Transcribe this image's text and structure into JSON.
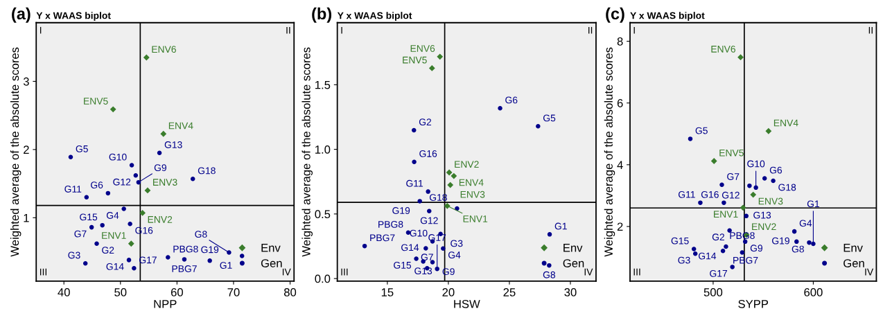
{
  "chart_data": [
    {
      "type": "scatter",
      "title": "Y x WAAS biplot",
      "xlabel": "NPP",
      "ylabel": "Weighted average of the absolute scores",
      "xlim": [
        35.1,
        80.7
      ],
      "ylim": [
        0.07,
        3.86
      ],
      "xticks": [
        40,
        50,
        60,
        70,
        80
      ],
      "yticks": [
        1,
        2,
        3
      ],
      "legend": "bottom right",
      "ref_lines": [
        {
          "axis": "x",
          "value": 53.5,
          "color": "#000000"
        },
        {
          "axis": "y",
          "value": 1.18,
          "color": "#000000"
        }
      ],
      "series": [
        {
          "name": "Env",
          "color": "#3a7d2c",
          "marker": "diamond",
          "x": [
            54.6,
            48.7,
            57.6,
            54.8,
            53.9,
            51.9
          ],
          "values": [
            3.35,
            2.59,
            2.23,
            1.4,
            1.07,
            0.62
          ]
        },
        {
          "name": "Gen",
          "color": "#00008b",
          "marker": "circle",
          "x": [
            56.9,
            41.2,
            52.0,
            52.7,
            53.2,
            62.8,
            47.8,
            44.0,
            50.6,
            46.8,
            51.7,
            44.9,
            45.8,
            51.5,
            43.8,
            52.4,
            58.4,
            61.3,
            65.8,
            69.2,
            71.5
          ],
          "values": [
            1.95,
            1.89,
            1.77,
            1.62,
            1.52,
            1.57,
            1.36,
            1.3,
            1.13,
            0.89,
            0.91,
            0.86,
            0.62,
            0.38,
            0.33,
            0.26,
            0.42,
            0.39,
            0.37,
            0.49,
            0.44
          ]
        }
      ],
      "annotations": [
        "(a)",
        "I",
        "II",
        "III",
        "IV",
        {
          "text": "ENV6",
          "x": 54.6,
          "y": 3.35
        },
        {
          "text": "ENV5",
          "x": 48.7,
          "y": 2.59
        },
        {
          "text": "ENV4",
          "x": 57.6,
          "y": 2.23
        },
        {
          "text": "ENV3",
          "x": 54.8,
          "y": 1.4
        },
        {
          "text": "ENV2",
          "x": 53.9,
          "y": 1.07
        },
        {
          "text": "ENV1",
          "x": 51.9,
          "y": 0.62
        },
        {
          "text": "G13",
          "x": 56.9,
          "y": 1.95
        },
        {
          "text": "G5",
          "x": 41.2,
          "y": 1.89
        },
        {
          "text": "G10",
          "x": 52.0,
          "y": 1.77
        },
        {
          "text": "G12",
          "x": 52.7,
          "y": 1.62
        },
        {
          "text": "G9",
          "x": 53.2,
          "y": 1.52
        },
        {
          "text": "G18",
          "x": 62.8,
          "y": 1.57
        },
        {
          "text": "G6",
          "x": 47.8,
          "y": 1.36
        },
        {
          "text": "G11",
          "x": 44.0,
          "y": 1.3
        },
        {
          "text": "G4",
          "x": 50.6,
          "y": 1.13
        },
        {
          "text": "G15",
          "x": 46.8,
          "y": 0.89
        },
        {
          "text": "G16",
          "x": 51.7,
          "y": 0.91
        },
        {
          "text": "G7",
          "x": 44.9,
          "y": 0.86
        },
        {
          "text": "G2",
          "x": 45.8,
          "y": 0.62
        },
        {
          "text": "G14",
          "x": 51.5,
          "y": 0.38
        },
        {
          "text": "G3",
          "x": 43.8,
          "y": 0.33
        },
        {
          "text": "G17",
          "x": 52.4,
          "y": 0.26
        },
        {
          "text": "PBG8",
          "x": 58.4,
          "y": 0.42
        },
        {
          "text": "PBG7",
          "x": 61.3,
          "y": 0.39
        },
        {
          "text": "G19",
          "x": 65.8,
          "y": 0.37
        },
        {
          "text": "G8",
          "x": 69.2,
          "y": 0.49
        },
        {
          "text": "G1",
          "x": 71.5,
          "y": 0.44
        }
      ]
    },
    {
      "type": "scatter",
      "title": "Y x WAAS biplot",
      "xlabel": "HSW",
      "ylabel": "Weighted average of the absolute scores",
      "xlim": [
        10.9,
        32.1
      ],
      "ylim": [
        -0.02,
        1.98
      ],
      "xticks": [
        15,
        20,
        25,
        30
      ],
      "yticks": [
        {
          "value": 0,
          "label": "0.0"
        },
        {
          "value": 0.5,
          "label": "0.5"
        },
        {
          "value": 1,
          "label": "1.0"
        },
        {
          "value": 1.5,
          "label": "1.5"
        }
      ],
      "legend": "bottom right",
      "ref_lines": [
        {
          "axis": "x",
          "value": 19.7,
          "color": "#000000"
        },
        {
          "axis": "y",
          "value": 0.59,
          "color": "#000000"
        }
      ],
      "series": [
        {
          "name": "Env",
          "color": "#3a7d2c",
          "marker": "diamond",
          "x": [
            19.31,
            18.66,
            20.07,
            20.45,
            20.16,
            19.91
          ],
          "values": [
            1.717,
            1.628,
            0.821,
            0.794,
            0.724,
            0.562
          ]
        },
        {
          "name": "Gen",
          "color": "#00008b",
          "marker": "circle",
          "x": [
            24.24,
            27.35,
            17.18,
            17.2,
            18.34,
            17.66,
            18.43,
            20.71,
            16.71,
            18.7,
            19.36,
            13.14,
            18.15,
            19.57,
            17.37,
            17.94,
            18.7,
            18.26,
            19.08,
            28.3,
            28.26
          ],
          "values": [
            1.318,
            1.179,
            1.148,
            0.903,
            0.673,
            0.599,
            0.522,
            0.542,
            0.356,
            0.288,
            0.345,
            0.252,
            0.234,
            0.233,
            0.154,
            0.132,
            0.127,
            0.08,
            0.075,
            0.342,
            0.102
          ]
        }
      ],
      "annotations": [
        "(b)",
        "I",
        "II",
        "III",
        "IV",
        {
          "text": "ENV6",
          "x": 19.31,
          "y": 1.717
        },
        {
          "text": "ENV5",
          "x": 18.66,
          "y": 1.628
        },
        {
          "text": "ENV2",
          "x": 20.07,
          "y": 0.821
        },
        {
          "text": "ENV4",
          "x": 20.45,
          "y": 0.794
        },
        {
          "text": "ENV3",
          "x": 20.16,
          "y": 0.724
        },
        {
          "text": "ENV1",
          "x": 19.91,
          "y": 0.562
        },
        {
          "text": "G6",
          "x": 24.24,
          "y": 1.318
        },
        {
          "text": "G5",
          "x": 27.35,
          "y": 1.179
        },
        {
          "text": "G2",
          "x": 17.18,
          "y": 1.148
        },
        {
          "text": "G16",
          "x": 17.2,
          "y": 0.903
        },
        {
          "text": "G11",
          "x": 18.34,
          "y": 0.673
        },
        {
          "text": "G19",
          "x": 17.66,
          "y": 0.599
        },
        {
          "text": "G12",
          "x": 18.43,
          "y": 0.522
        },
        {
          "text": "G18",
          "x": 20.71,
          "y": 0.542
        },
        {
          "text": "PBG8",
          "x": 16.71,
          "y": 0.356
        },
        {
          "text": "G10",
          "x": 18.7,
          "y": 0.288
        },
        {
          "text": "G3",
          "x": 19.36,
          "y": 0.345
        },
        {
          "text": "PBG7",
          "x": 13.14,
          "y": 0.252
        },
        {
          "text": "G14",
          "x": 18.15,
          "y": 0.234
        },
        {
          "text": "G4",
          "x": 19.57,
          "y": 0.233
        },
        {
          "text": "G15",
          "x": 17.37,
          "y": 0.154
        },
        {
          "text": "G13",
          "x": 17.94,
          "y": 0.132
        },
        {
          "text": "G9",
          "x": 18.7,
          "y": 0.127
        },
        {
          "text": "G7",
          "x": 18.26,
          "y": 0.08
        },
        {
          "text": "G17",
          "x": 19.08,
          "y": 0.075
        },
        {
          "text": "G1",
          "x": 28.3,
          "y": 0.342
        },
        {
          "text": "G8",
          "x": 28.26,
          "y": 0.102
        }
      ]
    },
    {
      "type": "scatter",
      "title": "Y x WAAS biplot",
      "xlabel": "SYPP",
      "ylabel": "Weighted average of the absolute scores",
      "xlim": [
        417,
        663
      ],
      "ylim": [
        0.23,
        8.6
      ],
      "xticks": [
        500,
        600
      ],
      "yticks": [
        2,
        4,
        6,
        8
      ],
      "legend": "bottom right",
      "ref_lines": [
        {
          "axis": "x",
          "value": 531.1,
          "color": "#000000"
        },
        {
          "axis": "y",
          "value": 2.6,
          "color": "#000000"
        }
      ],
      "series": [
        {
          "name": "Env",
          "color": "#3a7d2c",
          "marker": "diamond",
          "x": [
            527.4,
            555.3,
            500.9,
            540.0,
            529.9,
            533.3
          ],
          "values": [
            7.48,
            5.09,
            4.12,
            3.03,
            2.61,
            1.73
          ]
        },
        {
          "name": "Gen",
          "color": "#00008b",
          "marker": "circle",
          "x": [
            477.2,
            508.7,
            536.3,
            542.7,
            551.4,
            560.0,
            510.7,
            487.2,
            533.1,
            516.4,
            581.1,
            512.8,
            532.0,
            595.9,
            600.0,
            583.3,
            480.8,
            482.2,
            509.8,
            529.0,
            519.2
          ],
          "values": [
            4.84,
            3.35,
            3.32,
            3.26,
            3.56,
            3.48,
            2.77,
            2.77,
            2.34,
            1.87,
            1.84,
            1.35,
            1.51,
            1.48,
            1.44,
            1.51,
            1.27,
            1.12,
            1.21,
            1.16,
            0.69
          ]
        }
      ],
      "annotations": [
        "(c)",
        "I",
        "II",
        "III",
        "IV",
        {
          "text": "ENV6",
          "x": 527.4,
          "y": 7.48
        },
        {
          "text": "ENV4",
          "x": 555.3,
          "y": 5.09
        },
        {
          "text": "ENV5",
          "x": 500.9,
          "y": 4.12
        },
        {
          "text": "ENV3",
          "x": 540.0,
          "y": 3.03
        },
        {
          "text": "ENV1",
          "x": 529.9,
          "y": 2.61
        },
        {
          "text": "ENV2",
          "x": 533.3,
          "y": 1.73
        },
        {
          "text": "G5",
          "x": 477.2,
          "y": 4.84
        },
        {
          "text": "G7",
          "x": 508.7,
          "y": 3.35
        },
        {
          "text": "G12",
          "x": 536.3,
          "y": 3.32
        },
        {
          "text": "G10",
          "x": 542.7,
          "y": 3.26
        },
        {
          "text": "G6",
          "x": 551.4,
          "y": 3.56
        },
        {
          "text": "G18",
          "x": 560.0,
          "y": 3.48
        },
        {
          "text": "G16",
          "x": 510.7,
          "y": 2.77
        },
        {
          "text": "G11",
          "x": 487.2,
          "y": 2.77
        },
        {
          "text": "G13",
          "x": 533.1,
          "y": 2.34
        },
        {
          "text": "G2",
          "x": 516.4,
          "y": 1.87
        },
        {
          "text": "G4",
          "x": 581.1,
          "y": 1.84
        },
        {
          "text": "G14",
          "x": 512.8,
          "y": 1.35
        },
        {
          "text": "G9",
          "x": 532.0,
          "y": 1.51
        },
        {
          "text": "G8",
          "x": 595.9,
          "y": 1.48
        },
        {
          "text": "G1",
          "x": 600.0,
          "y": 1.44
        },
        {
          "text": "G19",
          "x": 583.3,
          "y": 1.51
        },
        {
          "text": "G15",
          "x": 480.8,
          "y": 1.27
        },
        {
          "text": "G3",
          "x": 482.2,
          "y": 1.12
        },
        {
          "text": "PBG7",
          "x": 509.8,
          "y": 1.21
        },
        {
          "text": "PBG8",
          "x": 529.0,
          "y": 1.16
        },
        {
          "text": "G17",
          "x": 519.2,
          "y": 0.69
        }
      ]
    }
  ]
}
